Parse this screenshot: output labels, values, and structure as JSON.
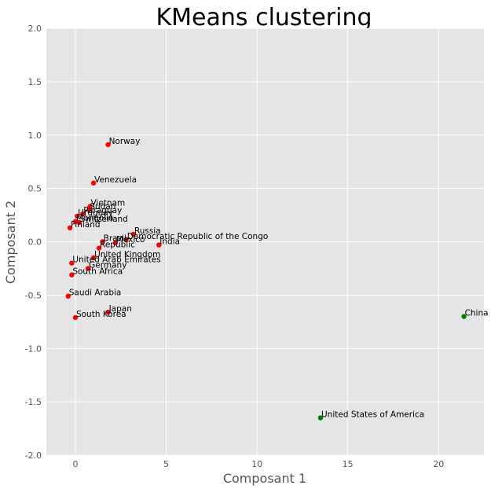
{
  "chart_data": {
    "type": "scatter",
    "title": "KMeans clustering",
    "xlabel": "Composant 1",
    "ylabel": "Composant 2",
    "xlim": [
      -1.6,
      22.5
    ],
    "ylim": [
      -2.0,
      2.0
    ],
    "xticks": [
      0,
      5,
      10,
      15,
      20
    ],
    "yticks": [
      -2.0,
      -1.5,
      -1.0,
      -0.5,
      0.0,
      0.5,
      1.0,
      1.5,
      2.0
    ],
    "grid": true,
    "background": "#e5e5e5",
    "grid_color": "#ffffff",
    "colors": {
      "cluster_0": "#ff0000",
      "cluster_1": "#008000"
    },
    "series": [
      {
        "color": "#ff0000",
        "points": [
          {
            "x": 1.8,
            "y": 0.91,
            "label": "Norway"
          },
          {
            "x": 1.0,
            "y": 0.55,
            "label": "Venezuela"
          },
          {
            "x": 0.8,
            "y": 0.33,
            "label": "Vietnam"
          },
          {
            "x": 0.75,
            "y": 0.3,
            "label": "Sudan"
          },
          {
            "x": 0.4,
            "y": 0.26,
            "label": "Paraguay"
          },
          {
            "x": 0.1,
            "y": 0.24,
            "label": "Uruguay"
          },
          {
            "x": 0.0,
            "y": 0.19,
            "label": "Mongolia"
          },
          {
            "x": 0.2,
            "y": 0.18,
            "label": "Switzerland"
          },
          {
            "x": -0.3,
            "y": 0.13,
            "label": "Finland"
          },
          {
            "x": 3.2,
            "y": 0.07,
            "label": "Russia"
          },
          {
            "x": 2.8,
            "y": 0.02,
            "label": "Democratic Republic of the Congo"
          },
          {
            "x": 4.6,
            "y": -0.03,
            "label": "India"
          },
          {
            "x": 2.2,
            "y": -0.01,
            "label": "Mexico"
          },
          {
            "x": 1.5,
            "y": 0.0,
            "label": "Brazil"
          },
          {
            "x": 1.3,
            "y": -0.06,
            "label": "Republic"
          },
          {
            "x": 1.0,
            "y": -0.15,
            "label": "United Kingdom"
          },
          {
            "x": -0.2,
            "y": -0.2,
            "label": "United Arab Emirates"
          },
          {
            "x": 0.7,
            "y": -0.25,
            "label": "Germany"
          },
          {
            "x": -0.2,
            "y": -0.31,
            "label": "South Africa"
          },
          {
            "x": -0.4,
            "y": -0.51,
            "label": "Saudi Arabia"
          },
          {
            "x": 1.8,
            "y": -0.66,
            "label": "Japan"
          },
          {
            "x": 0.0,
            "y": -0.71,
            "label": "South Korea"
          }
        ]
      },
      {
        "color": "#008000",
        "points": [
          {
            "x": 21.4,
            "y": -0.7,
            "label": "China"
          },
          {
            "x": 13.5,
            "y": -1.65,
            "label": "United States of America"
          }
        ]
      }
    ]
  }
}
